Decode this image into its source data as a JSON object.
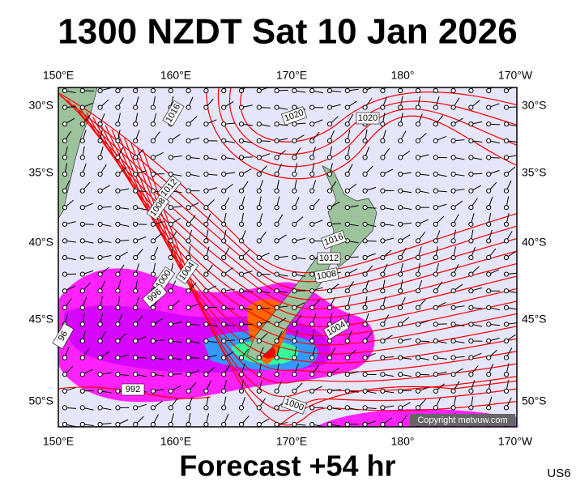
{
  "header": {
    "title": "1300 NZDT Sat 10 Jan 2026"
  },
  "map": {
    "lon_labels_top": [
      "150°E",
      "160°E",
      "170°E",
      "180°",
      "170°W"
    ],
    "lon_labels_bottom": [
      "150°E",
      "160°E",
      "170°E",
      "180°",
      "170°W"
    ],
    "lat_labels_left": [
      "30°S",
      "35°S",
      "40°S",
      "45°S",
      "50°S"
    ],
    "lat_labels_right": [
      "30°S",
      "35°S",
      "40°S",
      "45°S",
      "50°S"
    ],
    "isobar_labels": [
      "1016",
      "1020",
      "1020",
      "1012",
      "1008",
      "1004",
      "1000",
      "996",
      "1016",
      "1012",
      "1008",
      "1004",
      "992",
      "1000",
      "96"
    ],
    "copyright": "Copyright metvuw.com"
  },
  "footer": {
    "forecast": "Forecast +54 hr",
    "code": "US6"
  }
}
